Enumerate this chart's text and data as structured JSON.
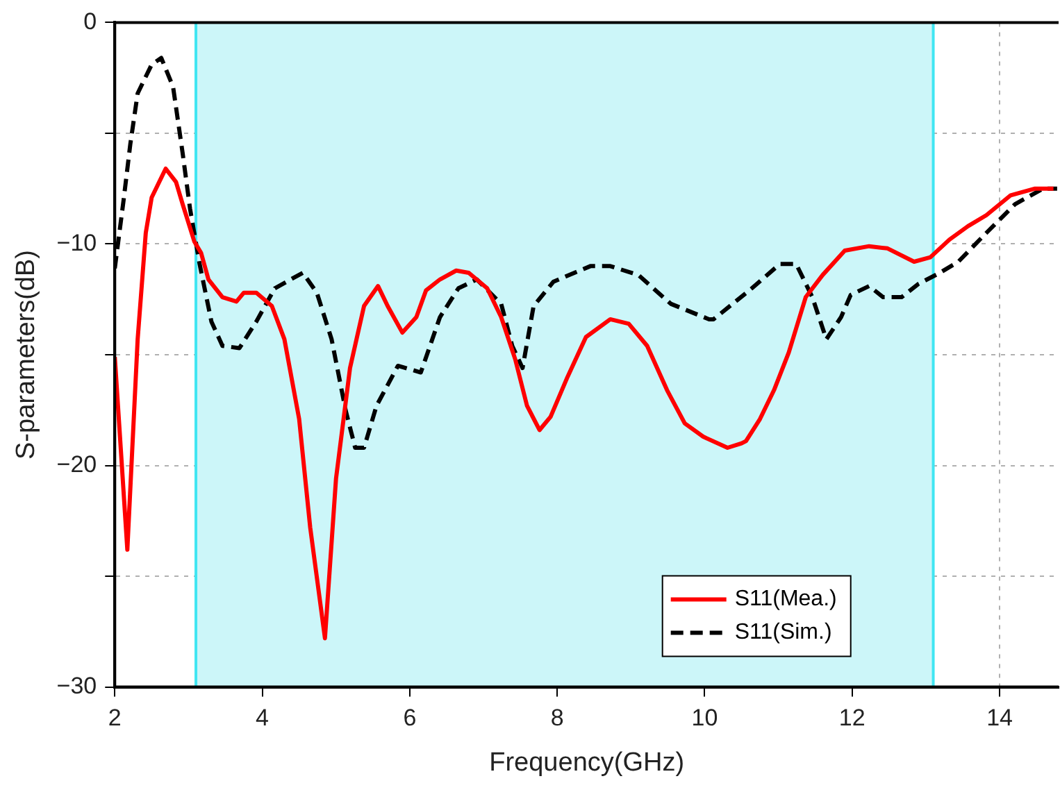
{
  "chart_data": {
    "type": "line",
    "xlabel": "Frequency(GHz)",
    "ylabel": "S-parameters(dB)",
    "xlim": [
      2,
      14.8
    ],
    "xticks": [
      2,
      4,
      6,
      8,
      10,
      12,
      14
    ],
    "ylim": [
      -30,
      0
    ],
    "yticks": [
      -30,
      {
        "value": -25,
        "label": null
      },
      -20,
      {
        "value": -15,
        "label": null
      },
      -10,
      {
        "value": -5,
        "label": null
      },
      0
    ],
    "grid": true,
    "legend": "bottom right",
    "marker": "none",
    "bands": [
      {
        "axis": "x",
        "from": 3.1,
        "to": 13.1,
        "color": "#ccf6f9"
      }
    ],
    "ref_lines": [
      {
        "axis": "x",
        "value": 3.1,
        "color": "#40e6f2"
      },
      {
        "axis": "x",
        "value": 13.1,
        "color": "#40e6f2"
      }
    ],
    "series": [
      {
        "name": "S11(Mea.)",
        "color": "#ff0000",
        "line_style": "solid",
        "x": [
          2.0,
          2.17,
          2.31,
          2.42,
          2.5,
          2.69,
          2.83,
          2.92,
          3.08,
          3.17,
          3.27,
          3.46,
          3.65,
          3.75,
          3.92,
          4.13,
          4.3,
          4.5,
          4.65,
          4.85,
          5.0,
          5.19,
          5.38,
          5.57,
          5.7,
          5.9,
          6.09,
          6.22,
          6.41,
          6.63,
          6.8,
          7.05,
          7.24,
          7.43,
          7.59,
          7.76,
          7.91,
          8.14,
          8.39,
          8.72,
          8.97,
          9.22,
          9.49,
          9.73,
          9.98,
          10.31,
          10.5,
          10.56,
          10.75,
          10.94,
          11.14,
          11.37,
          11.6,
          11.9,
          12.23,
          12.48,
          12.84,
          13.06,
          13.32,
          13.57,
          13.82,
          14.15,
          14.48,
          14.73
        ],
        "values": [
          -15.1,
          -23.8,
          -14.3,
          -9.5,
          -7.9,
          -6.6,
          -7.2,
          -8.2,
          -9.9,
          -10.4,
          -11.6,
          -12.4,
          -12.6,
          -12.2,
          -12.2,
          -12.8,
          -14.3,
          -17.9,
          -22.8,
          -27.8,
          -20.6,
          -15.6,
          -12.8,
          -11.9,
          -12.8,
          -14.0,
          -13.3,
          -12.1,
          -11.6,
          -11.2,
          -11.3,
          -12.0,
          -13.3,
          -15.2,
          -17.3,
          -18.4,
          -17.8,
          -16.0,
          -14.2,
          -13.4,
          -13.6,
          -14.6,
          -16.6,
          -18.1,
          -18.7,
          -19.2,
          -19.0,
          -18.9,
          -17.9,
          -16.6,
          -14.9,
          -12.4,
          -11.4,
          -10.3,
          -10.1,
          -10.2,
          -10.8,
          -10.6,
          -9.8,
          -9.2,
          -8.7,
          -7.8,
          -7.5,
          -7.5
        ]
      },
      {
        "name": "S11(Sim.)",
        "color": "#000000",
        "line_style": "dashed",
        "x": [
          2.0,
          2.12,
          2.21,
          2.31,
          2.5,
          2.63,
          2.79,
          2.92,
          3.02,
          3.15,
          3.31,
          3.46,
          3.69,
          3.92,
          4.17,
          4.55,
          4.74,
          4.94,
          5.13,
          5.26,
          5.38,
          5.55,
          5.84,
          6.15,
          6.41,
          6.66,
          6.91,
          7.24,
          7.39,
          7.53,
          7.68,
          7.95,
          8.45,
          8.72,
          9.1,
          9.54,
          10.06,
          10.12,
          10.64,
          11.02,
          11.24,
          11.46,
          11.65,
          11.85,
          11.98,
          12.23,
          12.42,
          12.67,
          12.9,
          13.19,
          13.44,
          13.82,
          14.21,
          14.59,
          14.78
        ],
        "values": [
          -11.1,
          -8.0,
          -5.5,
          -3.2,
          -1.9,
          -1.6,
          -2.9,
          -5.9,
          -8.4,
          -10.9,
          -13.5,
          -14.6,
          -14.7,
          -13.5,
          -12.0,
          -11.3,
          -12.2,
          -14.3,
          -17.5,
          -19.2,
          -19.2,
          -17.3,
          -15.5,
          -15.8,
          -13.3,
          -12.0,
          -11.6,
          -12.7,
          -14.6,
          -15.6,
          -12.8,
          -11.7,
          -11.0,
          -11.0,
          -11.4,
          -12.7,
          -13.4,
          -13.4,
          -12.0,
          -10.9,
          -10.9,
          -12.4,
          -14.3,
          -13.3,
          -12.3,
          -11.9,
          -12.4,
          -12.4,
          -11.8,
          -11.3,
          -10.8,
          -9.5,
          -8.2,
          -7.5,
          -7.5
        ]
      }
    ]
  }
}
